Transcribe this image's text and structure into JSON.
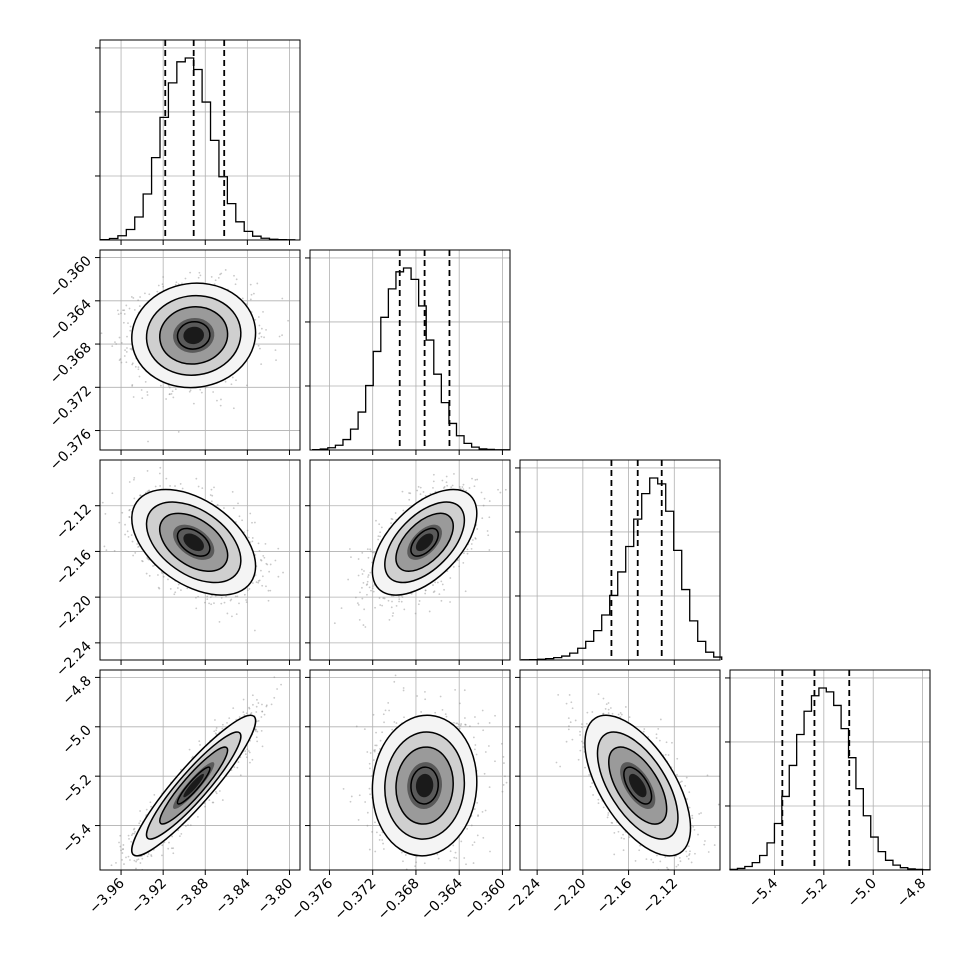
{
  "chart_data": {
    "type": "corner",
    "parameters": [
      {
        "range": [
          -3.98,
          -3.79
        ],
        "ticks": [
          -3.96,
          -3.92,
          -3.88,
          -3.84,
          -3.8
        ],
        "tick_labels": [
          "−3.96",
          "−3.92",
          "−3.88",
          "−3.84",
          "−3.80"
        ],
        "quantiles": [
          -3.918,
          -3.891,
          -3.862
        ],
        "hist_centers": [
          -3.975,
          -3.967,
          -3.959,
          -3.951,
          -3.943,
          -3.935,
          -3.927,
          -3.919,
          -3.911,
          -3.903,
          -3.895,
          -3.887,
          -3.879,
          -3.871,
          -3.863,
          -3.855,
          -3.847,
          -3.839,
          -3.831,
          -3.823,
          -3.815,
          -3.807,
          -3.799
        ],
        "hist_counts": [
          2,
          8,
          22,
          55,
          120,
          240,
          430,
          640,
          820,
          930,
          950,
          890,
          720,
          520,
          330,
          190,
          95,
          45,
          20,
          9,
          4,
          2,
          1
        ]
      },
      {
        "range": [
          -0.3778,
          -0.3593
        ],
        "ticks": [
          -0.376,
          -0.372,
          -0.368,
          -0.364,
          -0.36
        ],
        "tick_labels": [
          "−0.376",
          "−0.372",
          "−0.368",
          "−0.364",
          "−0.360"
        ],
        "quantiles": [
          -0.3695,
          -0.3672,
          -0.3649
        ],
        "hist_centers": [
          -0.3772,
          -0.3765,
          -0.3758,
          -0.3751,
          -0.3744,
          -0.3737,
          -0.373,
          -0.3723,
          -0.3716,
          -0.3709,
          -0.3702,
          -0.3695,
          -0.3688,
          -0.3681,
          -0.3674,
          -0.3667,
          -0.366,
          -0.3653,
          -0.3646,
          -0.3639,
          -0.3632,
          -0.3625,
          -0.3618,
          -0.3611,
          -0.3604,
          -0.3597
        ],
        "hist_counts": [
          2,
          5,
          12,
          25,
          55,
          110,
          200,
          340,
          520,
          700,
          850,
          940,
          960,
          900,
          760,
          580,
          400,
          250,
          140,
          75,
          35,
          15,
          6,
          3,
          1,
          1
        ]
      },
      {
        "range": [
          -2.255,
          -2.08
        ],
        "ticks": [
          -2.24,
          -2.2,
          -2.16,
          -2.12
        ],
        "tick_labels": [
          "−2.24",
          "−2.20",
          "−2.16",
          "−2.12"
        ],
        "quantiles": [
          -2.175,
          -2.152,
          -2.131
        ],
        "hist_centers": [
          -2.25,
          -2.243,
          -2.236,
          -2.229,
          -2.222,
          -2.215,
          -2.208,
          -2.201,
          -2.194,
          -2.187,
          -2.18,
          -2.173,
          -2.166,
          -2.159,
          -2.152,
          -2.145,
          -2.138,
          -2.131,
          -2.124,
          -2.117,
          -2.11,
          -2.103,
          -2.096,
          -2.089,
          -2.082
        ],
        "hist_counts": [
          1,
          2,
          4,
          7,
          12,
          20,
          35,
          60,
          95,
          150,
          230,
          330,
          450,
          580,
          720,
          850,
          930,
          900,
          760,
          560,
          360,
          200,
          95,
          40,
          15
        ]
      },
      {
        "range": [
          -5.58,
          -4.77
        ],
        "ticks": [
          -5.4,
          -5.2,
          -5.0,
          -4.8
        ],
        "tick_labels": [
          "−5.4",
          "−5.2",
          "−5.0",
          "−4.8"
        ],
        "quantiles": [
          -5.368,
          -5.238,
          -5.097
        ],
        "hist_centers": [
          -5.565,
          -5.535,
          -5.505,
          -5.475,
          -5.445,
          -5.415,
          -5.385,
          -5.355,
          -5.325,
          -5.295,
          -5.265,
          -5.235,
          -5.205,
          -5.175,
          -5.145,
          -5.115,
          -5.085,
          -5.055,
          -5.025,
          -4.995,
          -4.965,
          -4.935,
          -4.905,
          -4.875,
          -4.845,
          -4.815,
          -4.785
        ],
        "hist_counts": [
          3,
          8,
          18,
          38,
          75,
          140,
          240,
          380,
          540,
          700,
          820,
          900,
          940,
          920,
          850,
          730,
          580,
          420,
          280,
          170,
          95,
          50,
          25,
          12,
          6,
          3,
          1
        ]
      }
    ],
    "pairs": [
      {
        "row": 1,
        "col": 0,
        "corr": 0.05
      },
      {
        "row": 2,
        "col": 0,
        "corr": -0.45
      },
      {
        "row": 2,
        "col": 1,
        "corr": 0.55
      },
      {
        "row": 3,
        "col": 0,
        "corr": 0.92
      },
      {
        "row": 3,
        "col": 1,
        "corr": 0.05
      },
      {
        "row": 3,
        "col": 2,
        "corr": -0.6
      }
    ],
    "contour_levels_sigma": [
      0.5,
      1.0,
      1.5,
      2.0
    ],
    "grid": true,
    "line_color": "#000000",
    "grid_color": "#b0b0b0",
    "point_color": "#888888"
  }
}
